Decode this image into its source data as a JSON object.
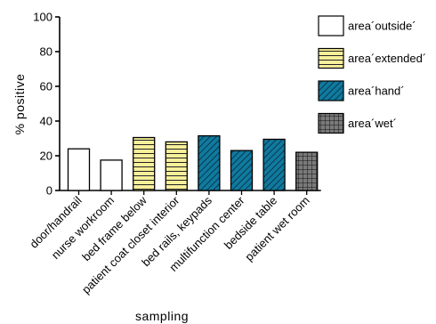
{
  "chart_data": {
    "type": "bar",
    "ylabel": "% positive",
    "xlabel": "sampling",
    "ylim": [
      0,
      100
    ],
    "yticks": [
      0,
      20,
      40,
      60,
      80,
      100
    ],
    "categories": [
      "door/handrail",
      "nurse workroom",
      "bed frame below",
      "patient coat closet interior",
      "bed rails, keypads",
      "multifunction center",
      "bedside table",
      "patient wet room"
    ],
    "values": [
      24,
      17.5,
      30.5,
      28,
      31.5,
      23,
      29.5,
      22
    ],
    "groups": [
      "outside",
      "outside",
      "extended",
      "extended",
      "hand",
      "hand",
      "hand",
      "wet"
    ],
    "legend": [
      {
        "key": "outside",
        "label": "area´outside´",
        "fill": "#ffffff",
        "pattern": "none"
      },
      {
        "key": "extended",
        "label": "area´extended´",
        "fill": "#f7ef9a",
        "pattern": "horizontal"
      },
      {
        "key": "hand",
        "label": "area´hand´",
        "fill": "#0f7aa0",
        "pattern": "diagonal"
      },
      {
        "key": "wet",
        "label": "area´wet´",
        "fill": "#7a7a7a",
        "pattern": "grid"
      }
    ],
    "legend_position": "right",
    "grid": false
  }
}
